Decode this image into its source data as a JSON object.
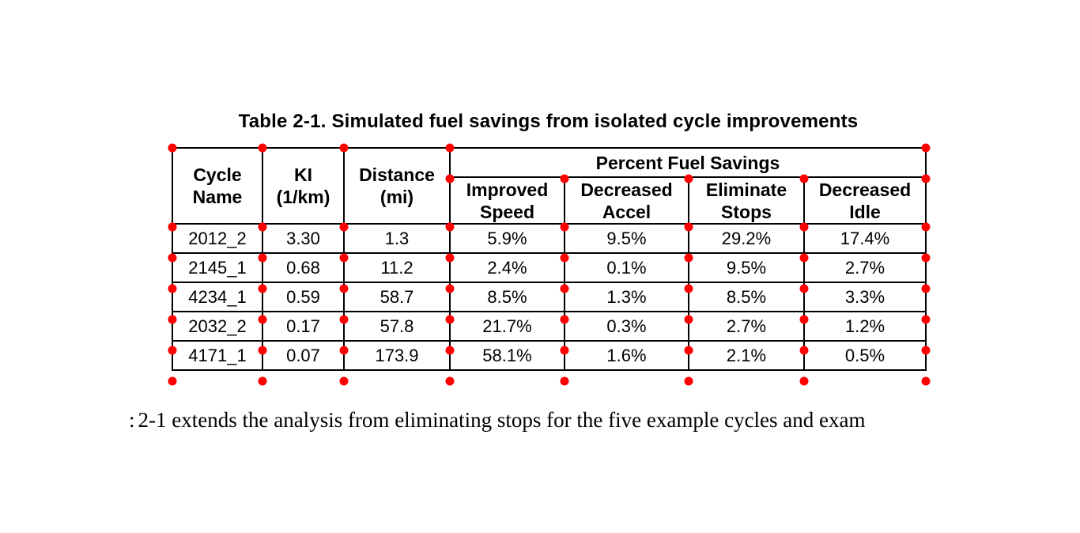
{
  "title": "Table 2-1. Simulated fuel savings from isolated cycle improvements",
  "table": {
    "group_header": "Percent Fuel Savings",
    "columns": [
      "Cycle\nName",
      "KI\n(1/km)",
      "Distance\n(mi)",
      "Improved\nSpeed",
      "Decreased\nAccel",
      "Eliminate\nStops",
      "Decreased\nIdle"
    ],
    "rows": [
      [
        "2012_2",
        "3.30",
        "1.3",
        "5.9%",
        "9.5%",
        "29.2%",
        "17.4%"
      ],
      [
        "2145_1",
        "0.68",
        "11.2",
        "2.4%",
        "0.1%",
        "9.5%",
        "2.7%"
      ],
      [
        "4234_1",
        "0.59",
        "58.7",
        "8.5%",
        "1.3%",
        "8.5%",
        "3.3%"
      ],
      [
        "2032_2",
        "0.17",
        "57.8",
        "21.7%",
        "0.3%",
        "2.7%",
        "1.2%"
      ],
      [
        "4171_1",
        "0.07",
        "173.9",
        "58.1%",
        "1.6%",
        "2.1%",
        "0.5%"
      ]
    ],
    "marker_color": "#ff0000"
  },
  "caption": {
    "fragment": ":",
    "text": "2-1 extends the analysis from eliminating stops for the five example cycles and exam"
  }
}
